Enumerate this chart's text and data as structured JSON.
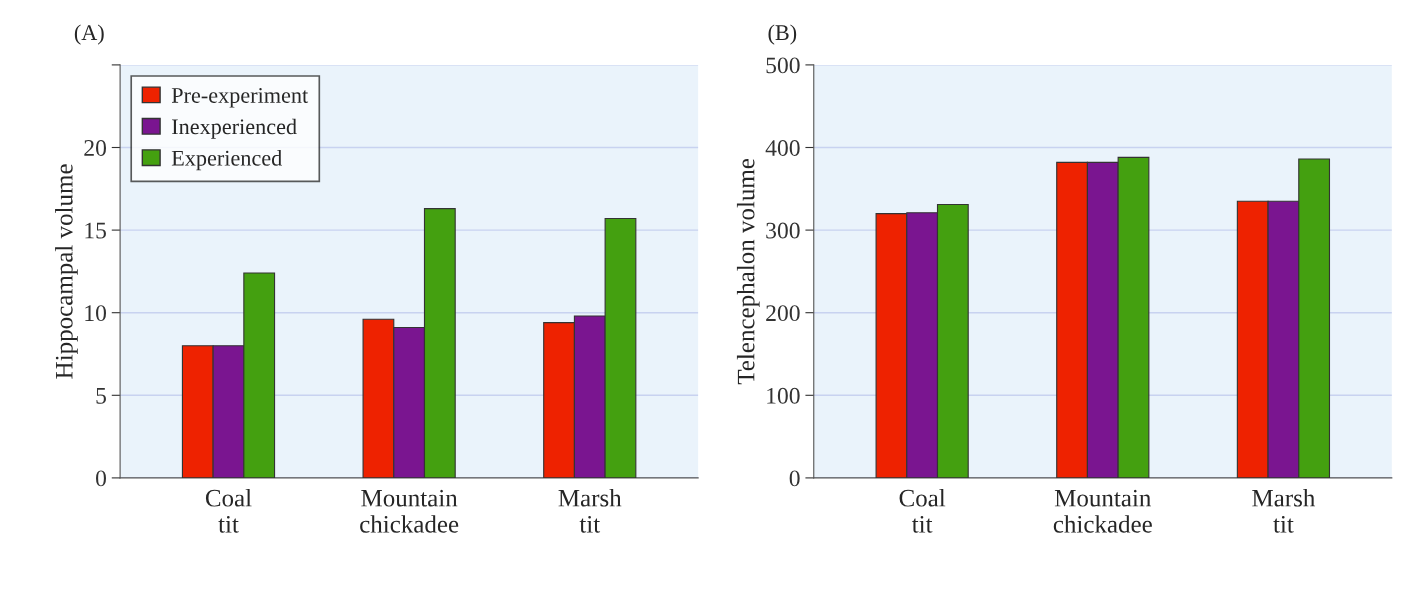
{
  "chart_data": [
    {
      "type": "bar",
      "title": "(A)",
      "ylabel": "Hippocampal volume",
      "categories": [
        "Coal\ntit",
        "Mountain\nchickadee",
        "Marsh\ntit"
      ],
      "series": [
        {
          "name": "Pre-experiment",
          "color": "#ee2200",
          "values": [
            8.0,
            9.6,
            9.4
          ]
        },
        {
          "name": "Inexperienced",
          "color": "#7a1590",
          "values": [
            8.0,
            9.1,
            9.8
          ]
        },
        {
          "name": "Experienced",
          "color": "#44a010",
          "values": [
            12.4,
            16.3,
            15.7
          ]
        }
      ],
      "ylim": [
        0,
        25
      ],
      "yticks": [
        0,
        5,
        10,
        15,
        20,
        {
          "value": 25,
          "label": null
        }
      ],
      "grid": "y",
      "legend": "top left"
    },
    {
      "type": "bar",
      "title": "(B)",
      "ylabel": "Telencephalon volume",
      "categories": [
        "Coal\ntit",
        "Mountain\nchickadee",
        "Marsh\ntit"
      ],
      "series": [
        {
          "color": "#ee2200",
          "values": [
            320,
            382,
            335
          ]
        },
        {
          "color": "#7a1590",
          "values": [
            321,
            382,
            335
          ]
        },
        {
          "color": "#44a010",
          "values": [
            331,
            388,
            386
          ]
        }
      ],
      "ylim": [
        0,
        500
      ],
      "yticks": [
        0,
        100,
        200,
        300,
        400,
        500
      ],
      "grid": "y"
    }
  ]
}
